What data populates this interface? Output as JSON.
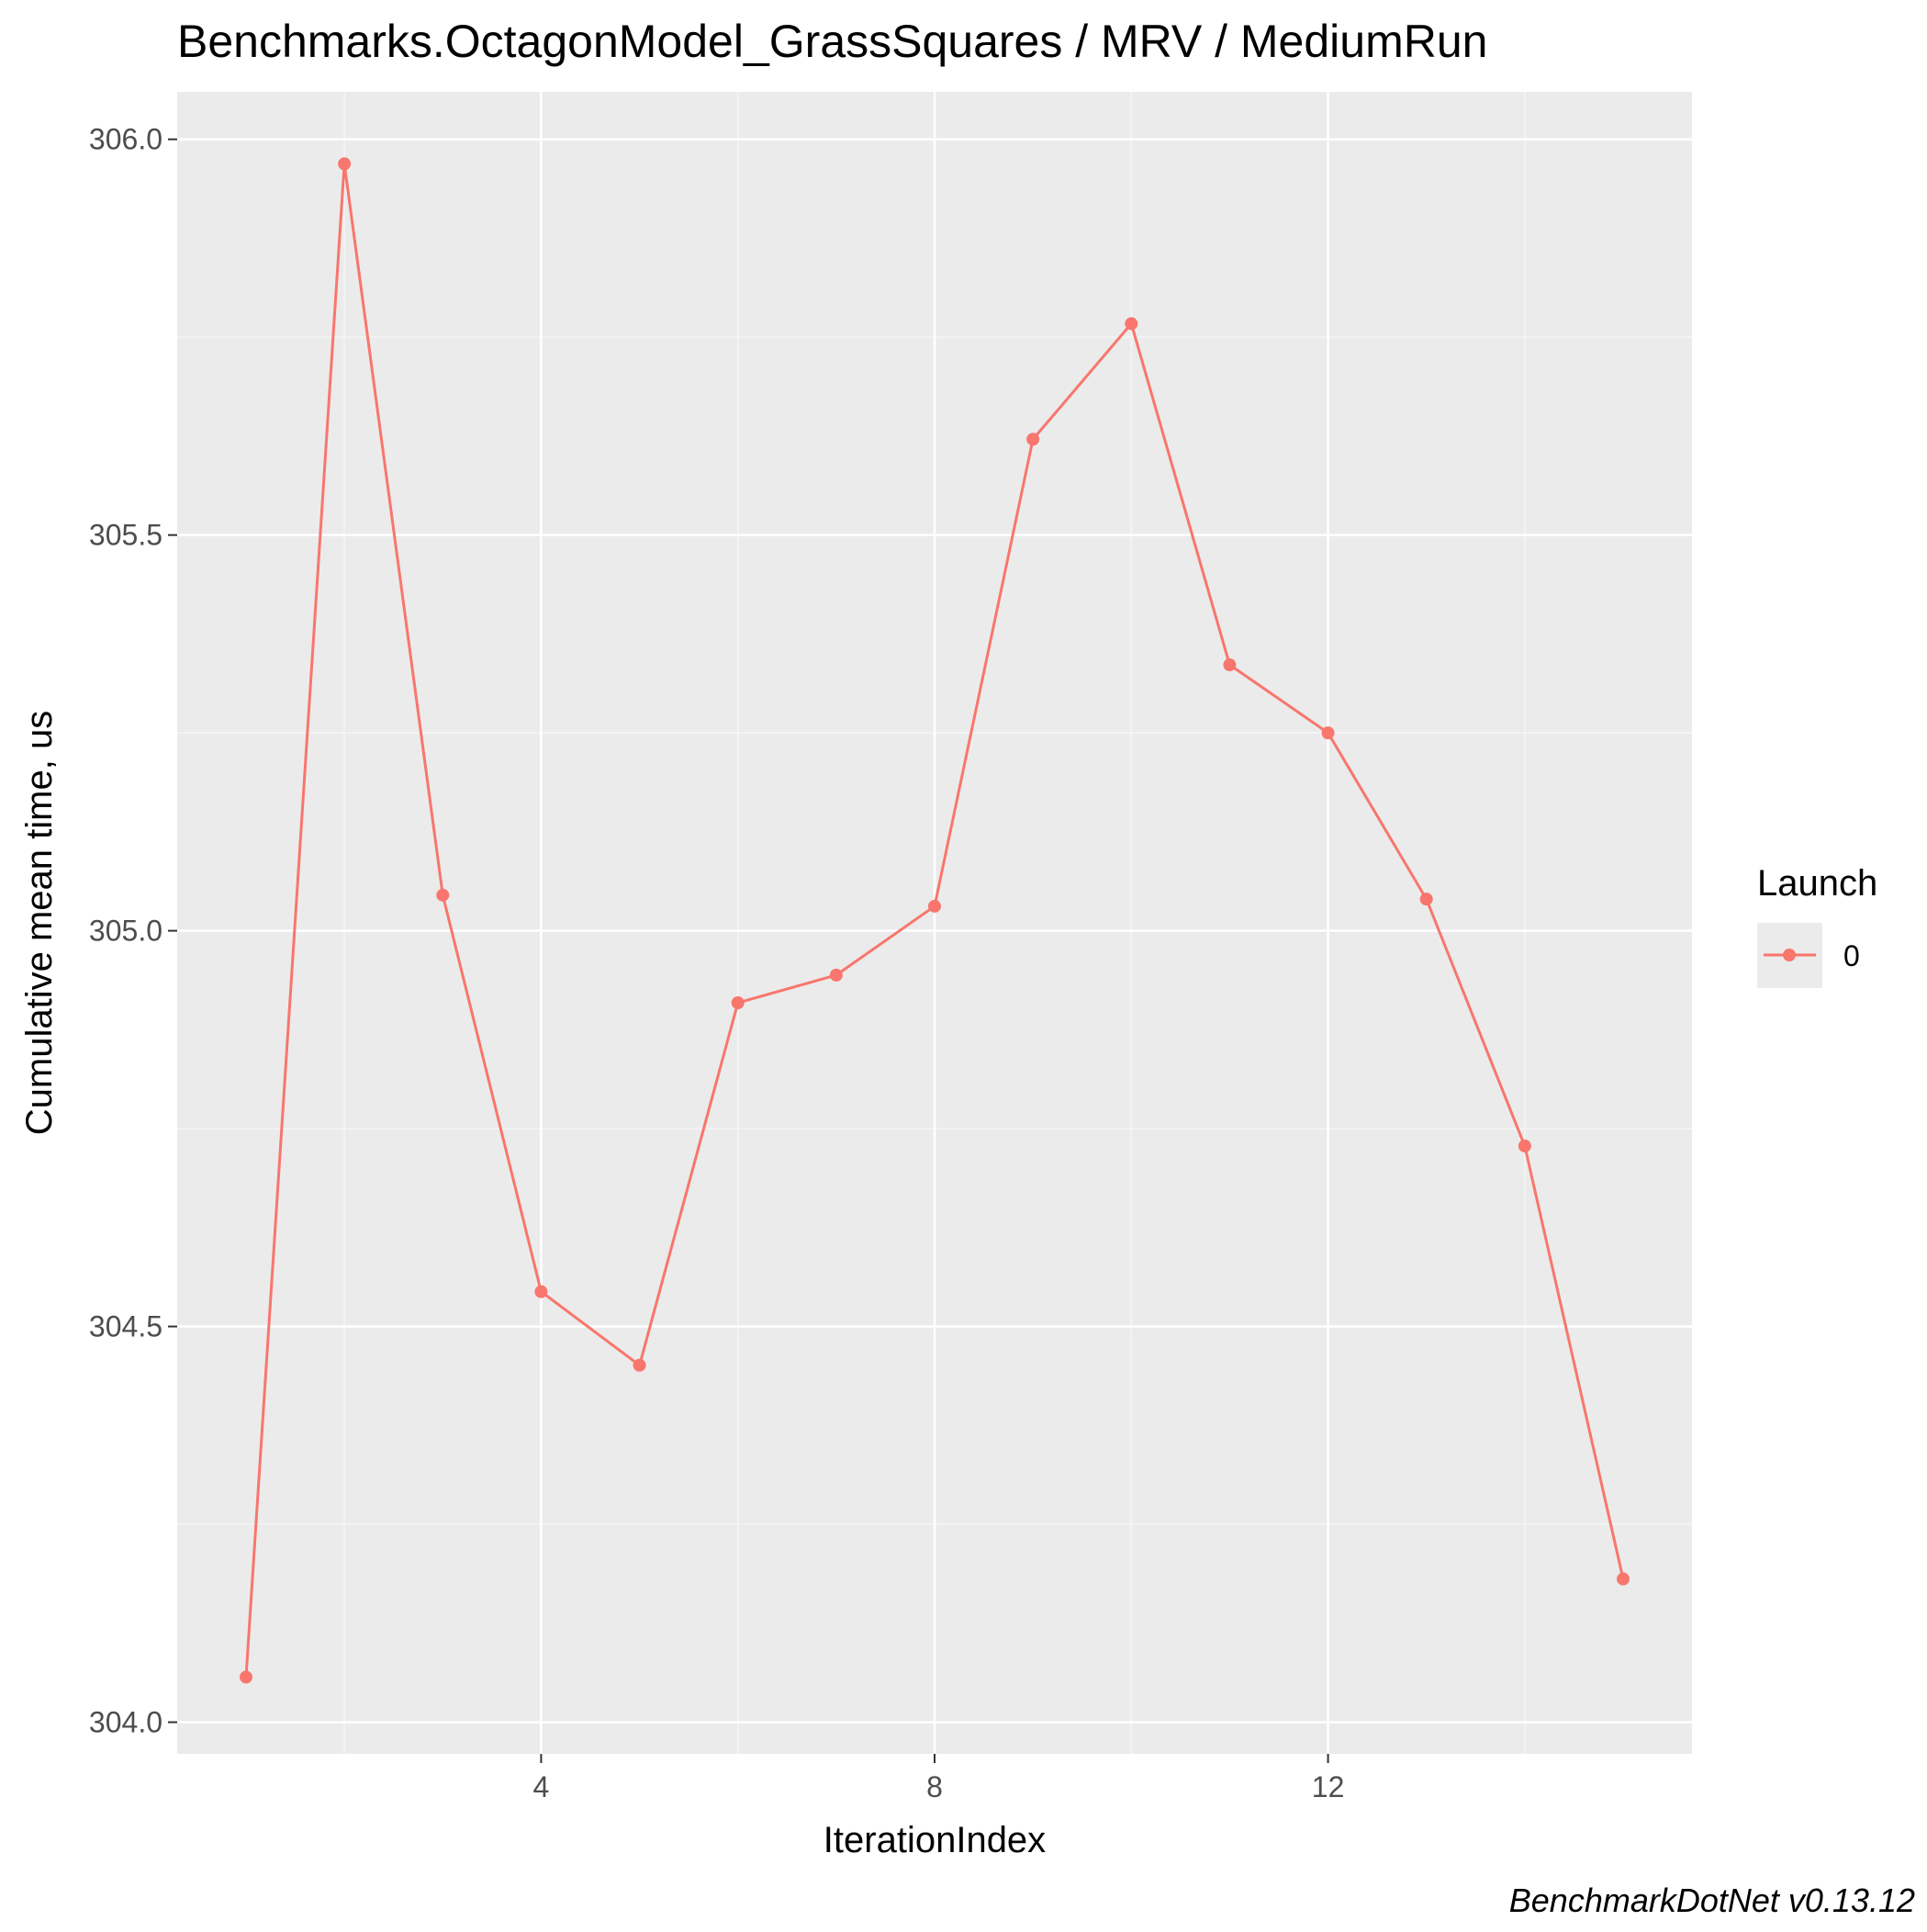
{
  "chart_data": {
    "type": "line",
    "title": "Benchmarks.OctagonModel_GrassSquares / MRV / MediumRun",
    "xlabel": "IterationIndex",
    "ylabel": "Cumulative mean time, us",
    "caption": "BenchmarkDotNet v0.13.12",
    "x_ticks": [
      "4",
      "8",
      "12"
    ],
    "x_tick_values": [
      4,
      8,
      12
    ],
    "y_ticks": [
      "304.0",
      "304.5",
      "305.0",
      "305.5",
      "306.0"
    ],
    "y_tick_values": [
      304.0,
      304.5,
      305.0,
      305.5,
      306.0
    ],
    "xlim": [
      0.3,
      15.7
    ],
    "ylim": [
      303.96,
      306.06
    ],
    "grid": true,
    "legend": {
      "title": "Launch",
      "position": "right"
    },
    "series": [
      {
        "name": "0",
        "color": "#F8766D",
        "x": [
          1,
          2,
          3,
          4,
          5,
          6,
          7,
          8,
          9,
          10,
          11,
          12,
          13,
          14,
          15
        ],
        "y": [
          304.057,
          305.969,
          305.045,
          304.544,
          304.451,
          304.909,
          304.944,
          305.031,
          305.621,
          305.767,
          305.336,
          305.25,
          305.04,
          304.728,
          304.181
        ]
      }
    ]
  },
  "colors": {
    "panel_background": "#EBEBEB",
    "grid_major": "#FFFFFF",
    "grid_minor": "#F5F5F5",
    "series_color": "#F8766D",
    "tick_text": "#4D4D4D"
  }
}
